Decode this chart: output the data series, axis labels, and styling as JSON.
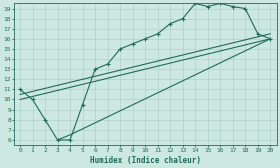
{
  "xlabel": "Humidex (Indice chaleur)",
  "xlim": [
    -0.5,
    20.5
  ],
  "ylim": [
    5.5,
    19.5
  ],
  "xticks": [
    0,
    1,
    2,
    3,
    4,
    5,
    6,
    7,
    8,
    9,
    10,
    11,
    12,
    13,
    14,
    15,
    16,
    17,
    18,
    19,
    20
  ],
  "yticks": [
    6,
    7,
    8,
    9,
    10,
    11,
    12,
    13,
    14,
    15,
    16,
    17,
    18,
    19
  ],
  "color": "#1e6b5e",
  "bg_color": "#cce8e0",
  "grid_color": "#aaccC4",
  "curve_main": {
    "x": [
      0,
      1,
      2,
      3,
      4,
      5,
      6,
      7,
      8,
      9,
      10,
      11,
      12,
      13,
      14,
      15,
      16,
      17,
      18,
      19,
      20
    ],
    "y": [
      11,
      10,
      8,
      6,
      6,
      9.5,
      13,
      13.5,
      15,
      15.5,
      16,
      16.5,
      17.5,
      18,
      19.5,
      19.2,
      19.5,
      19.2,
      19,
      16.5,
      16
    ]
  },
  "curve_linear1": {
    "x": [
      0,
      20
    ],
    "y": [
      10,
      16
    ]
  },
  "curve_linear2": {
    "x": [
      0,
      20
    ],
    "y": [
      10.5,
      16.5
    ]
  },
  "curve_linear3": {
    "x": [
      3,
      4,
      20
    ],
    "y": [
      6,
      6.5,
      16
    ]
  }
}
